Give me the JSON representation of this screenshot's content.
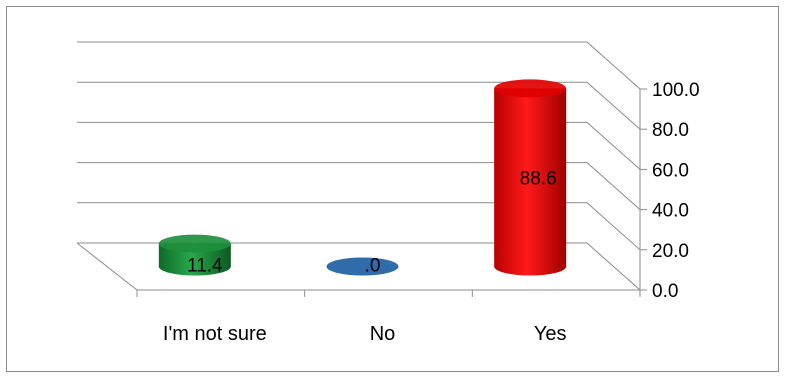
{
  "chart_data": {
    "type": "bar",
    "style": "3d-cylinder",
    "categories": [
      "I'm not sure",
      "No",
      "Yes"
    ],
    "values": [
      11.4,
      0.0,
      88.6
    ],
    "data_labels": [
      "11.4",
      ".0",
      "88.6"
    ],
    "colors": [
      "#1e8f3c",
      "#1f5fa3",
      "#e00000"
    ],
    "ylim": [
      0,
      100
    ],
    "yticks": [
      "0.0",
      "20.0",
      "40.0",
      "60.0",
      "80.0",
      "100.0"
    ],
    "grid": true,
    "legend": "none",
    "title": "",
    "xlabel": "",
    "ylabel": ""
  }
}
